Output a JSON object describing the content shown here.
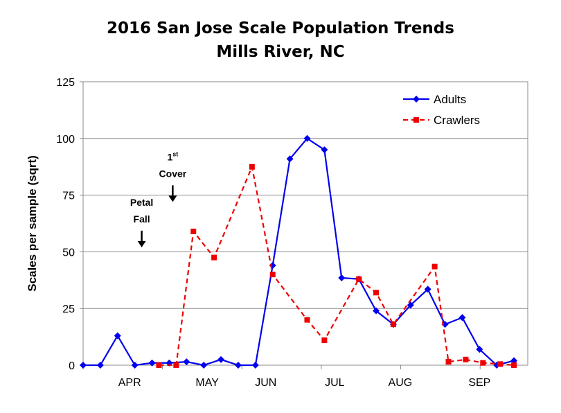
{
  "chart_data": {
    "type": "line",
    "title_line1": "2016 San Jose Scale Population Trends",
    "title_line2": "Mills River, NC",
    "ylabel": "Scales per sample (sqrt)",
    "xlabel": "",
    "ylim": [
      0,
      125
    ],
    "yticks": [
      0,
      25,
      50,
      75,
      100,
      125
    ],
    "grid": true,
    "legend_position": "top-right",
    "month_labels": [
      "APR",
      "MAY",
      "JUN",
      "JUL",
      "AUG",
      "SEP"
    ],
    "series": [
      {
        "name": "Adults",
        "color": "#0000ee",
        "style": "solid",
        "marker": "diamond",
        "points": [
          {
            "x": 0.0,
            "y": 0
          },
          {
            "x": 0.5,
            "y": 0
          },
          {
            "x": 1.0,
            "y": 13
          },
          {
            "x": 1.5,
            "y": 0
          },
          {
            "x": 2.0,
            "y": 1
          },
          {
            "x": 2.5,
            "y": 1
          },
          {
            "x": 3.0,
            "y": 1.5
          },
          {
            "x": 3.5,
            "y": 0
          },
          {
            "x": 4.0,
            "y": 2.5
          },
          {
            "x": 4.5,
            "y": 0
          },
          {
            "x": 5.0,
            "y": 0
          },
          {
            "x": 5.5,
            "y": 44
          },
          {
            "x": 6.0,
            "y": 91
          },
          {
            "x": 6.5,
            "y": 100
          },
          {
            "x": 7.0,
            "y": 95
          },
          {
            "x": 7.5,
            "y": 38.5
          },
          {
            "x": 8.0,
            "y": 38
          },
          {
            "x": 8.5,
            "y": 24
          },
          {
            "x": 9.0,
            "y": 18
          },
          {
            "x": 9.5,
            "y": 26.5
          },
          {
            "x": 10.0,
            "y": 33.5
          },
          {
            "x": 10.5,
            "y": 18
          },
          {
            "x": 11.0,
            "y": 21
          },
          {
            "x": 11.5,
            "y": 7
          },
          {
            "x": 12.0,
            "y": 0
          },
          {
            "x": 12.5,
            "y": 2
          }
        ]
      },
      {
        "name": "Crawlers",
        "color": "#ee0000",
        "style": "dashed",
        "marker": "square",
        "points": [
          {
            "x": 2.2,
            "y": 0
          },
          {
            "x": 2.7,
            "y": 0
          },
          {
            "x": 3.2,
            "y": 59
          },
          {
            "x": 3.8,
            "y": 47.5
          },
          {
            "x": 4.9,
            "y": 87.5
          },
          {
            "x": 5.5,
            "y": 40
          },
          {
            "x": 6.5,
            "y": 20
          },
          {
            "x": 7.0,
            "y": 11
          },
          {
            "x": 8.0,
            "y": 38
          },
          {
            "x": 8.5,
            "y": 32
          },
          {
            "x": 9.0,
            "y": 18
          },
          {
            "x": 10.2,
            "y": 43.5
          },
          {
            "x": 10.6,
            "y": 1.5
          },
          {
            "x": 11.1,
            "y": 2.5
          },
          {
            "x": 11.6,
            "y": 1
          },
          {
            "x": 12.1,
            "y": 0.5
          },
          {
            "x": 12.5,
            "y": 0
          }
        ]
      }
    ],
    "annotations": [
      {
        "lines": [
          "Petal",
          "Fall"
        ],
        "x": 1.7,
        "y": 52
      },
      {
        "lines": [
          "1",
          "Cover"
        ],
        "superscript": "st",
        "x": 2.6,
        "y": 72
      }
    ]
  }
}
